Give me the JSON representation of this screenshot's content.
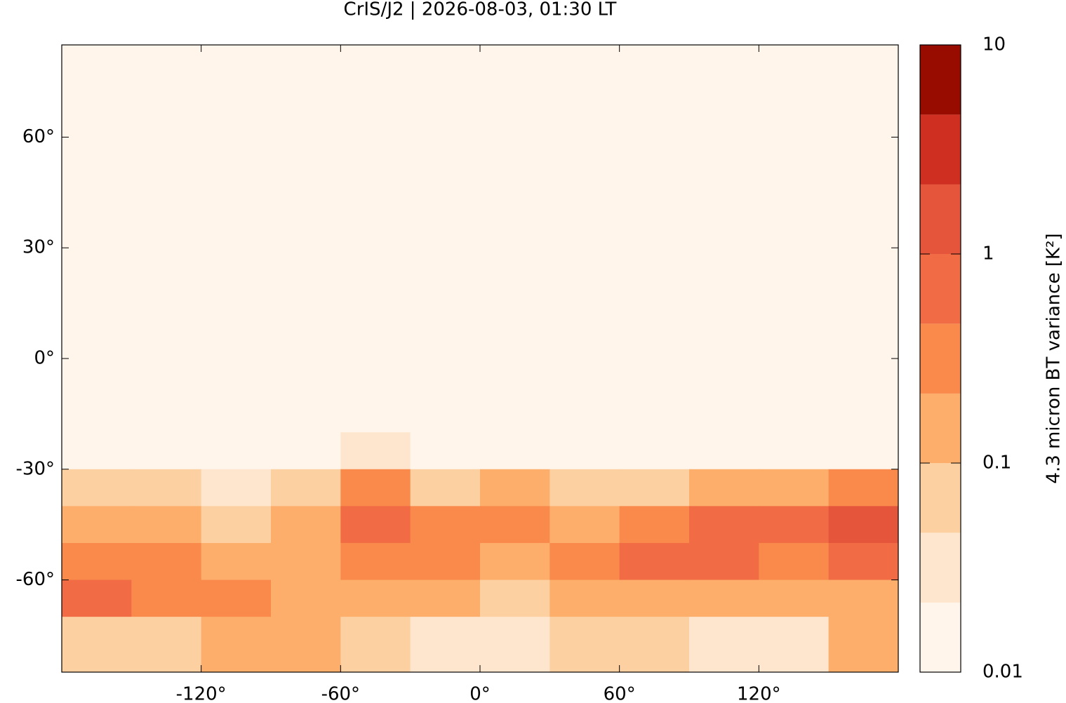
{
  "chart_data": {
    "type": "heatmap",
    "title": "CrIS/J2 | 2026-08-03, 01:30 LT",
    "xlim": [
      -180,
      180
    ],
    "ylim": [
      -85,
      85
    ],
    "xticks": [
      {
        "value": -120,
        "label": "-120°"
      },
      {
        "value": -60,
        "label": "-60°"
      },
      {
        "value": 0,
        "label": "0°"
      },
      {
        "value": 60,
        "label": "60°"
      },
      {
        "value": 120,
        "label": "120°"
      }
    ],
    "yticks": [
      {
        "value": -60,
        "label": "-60°"
      },
      {
        "value": -30,
        "label": "-30°"
      },
      {
        "value": 0,
        "label": "0°"
      },
      {
        "value": 30,
        "label": "30°"
      },
      {
        "value": 60,
        "label": "60°"
      }
    ],
    "lon_edges": [
      -180,
      -150,
      -120,
      -90,
      -60,
      -30,
      0,
      30,
      60,
      90,
      120,
      150,
      180
    ],
    "lat_edges": [
      85,
      60,
      30,
      0,
      -20,
      -30,
      -40,
      -50,
      -60,
      -70,
      -85
    ],
    "values": [
      [
        0.012,
        0.012,
        0.012,
        0.012,
        0.012,
        0.012,
        0.012,
        0.012,
        0.012,
        0.012,
        0.012,
        0.012
      ],
      [
        0.015,
        0.015,
        0.015,
        0.015,
        0.015,
        0.015,
        0.015,
        0.015,
        0.015,
        0.015,
        0.02,
        0.015
      ],
      [
        0.015,
        0.015,
        0.015,
        0.015,
        0.015,
        0.015,
        0.015,
        0.015,
        0.015,
        0.015,
        0.015,
        0.02
      ],
      [
        0.015,
        0.015,
        0.015,
        0.015,
        0.015,
        0.015,
        0.015,
        0.015,
        0.015,
        0.015,
        0.015,
        0.015
      ],
      [
        0.02,
        0.02,
        0.02,
        0.02,
        0.03,
        0.02,
        0.02,
        0.02,
        0.02,
        0.02,
        0.02,
        0.02
      ],
      [
        0.05,
        0.05,
        0.04,
        0.06,
        0.3,
        0.08,
        0.1,
        0.05,
        0.06,
        0.1,
        0.2,
        0.3
      ],
      [
        0.2,
        0.1,
        0.08,
        0.1,
        0.5,
        0.3,
        0.3,
        0.15,
        0.3,
        0.6,
        0.6,
        1.0
      ],
      [
        0.4,
        0.3,
        0.2,
        0.15,
        0.3,
        0.3,
        0.2,
        0.4,
        0.5,
        0.5,
        0.4,
        0.8
      ],
      [
        0.5,
        0.4,
        0.3,
        0.15,
        0.15,
        0.15,
        0.08,
        0.2,
        0.2,
        0.2,
        0.15,
        0.2
      ],
      [
        0.05,
        0.05,
        0.1,
        0.2,
        0.05,
        0.03,
        0.03,
        0.05,
        0.05,
        0.04,
        0.04,
        0.1
      ]
    ],
    "colorbar": {
      "label": "4.3 micron BT variance [K²]",
      "log": true,
      "lim": [
        0.01,
        10
      ],
      "ticks": [
        0.01,
        0.1,
        1,
        10
      ],
      "levels": [
        0.01,
        0.0215,
        0.0464,
        0.1,
        0.215,
        0.464,
        1,
        2.15,
        4.64,
        10
      ],
      "colors": [
        "#fff5eb",
        "#fee6ce",
        "#fdd0a2",
        "#fdae6b",
        "#f98a4c",
        "#f16c44",
        "#e4553c",
        "#cf2f20",
        "#980c00"
      ]
    }
  }
}
